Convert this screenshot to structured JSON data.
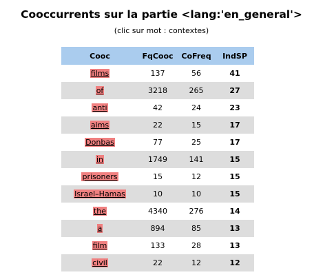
{
  "page": {
    "title": "Cooccurrents sur la partie <lang:'en_general'>",
    "subtitle": "(clic sur mot : contextes)"
  },
  "table": {
    "headers": {
      "cooc": "Cooc",
      "fqcooc": "FqCooc",
      "cofreq": "CoFreq",
      "indsp": "IndSP"
    },
    "rows": [
      {
        "word": "films",
        "fqcooc": "137",
        "cofreq": "56",
        "indsp": "41"
      },
      {
        "word": "of",
        "fqcooc": "3218",
        "cofreq": "265",
        "indsp": "27"
      },
      {
        "word": "anti",
        "fqcooc": "42",
        "cofreq": "24",
        "indsp": "23"
      },
      {
        "word": "aims",
        "fqcooc": "22",
        "cofreq": "15",
        "indsp": "17"
      },
      {
        "word": "Donbas",
        "fqcooc": "77",
        "cofreq": "25",
        "indsp": "17"
      },
      {
        "word": "in",
        "fqcooc": "1749",
        "cofreq": "141",
        "indsp": "15"
      },
      {
        "word": "prisoners",
        "fqcooc": "15",
        "cofreq": "12",
        "indsp": "15"
      },
      {
        "word": "Israel–Hamas",
        "fqcooc": "10",
        "cofreq": "10",
        "indsp": "15"
      },
      {
        "word": "the",
        "fqcooc": "4340",
        "cofreq": "276",
        "indsp": "14"
      },
      {
        "word": "a",
        "fqcooc": "894",
        "cofreq": "85",
        "indsp": "13"
      },
      {
        "word": "film",
        "fqcooc": "133",
        "cofreq": "28",
        "indsp": "13"
      },
      {
        "word": "civil",
        "fqcooc": "22",
        "cofreq": "12",
        "indsp": "12"
      }
    ]
  },
  "colors": {
    "header_bg": "#aaccee",
    "row_even_bg": "#dddddd",
    "word_highlight": "#f08080",
    "indsp_text": "#ee0000"
  }
}
